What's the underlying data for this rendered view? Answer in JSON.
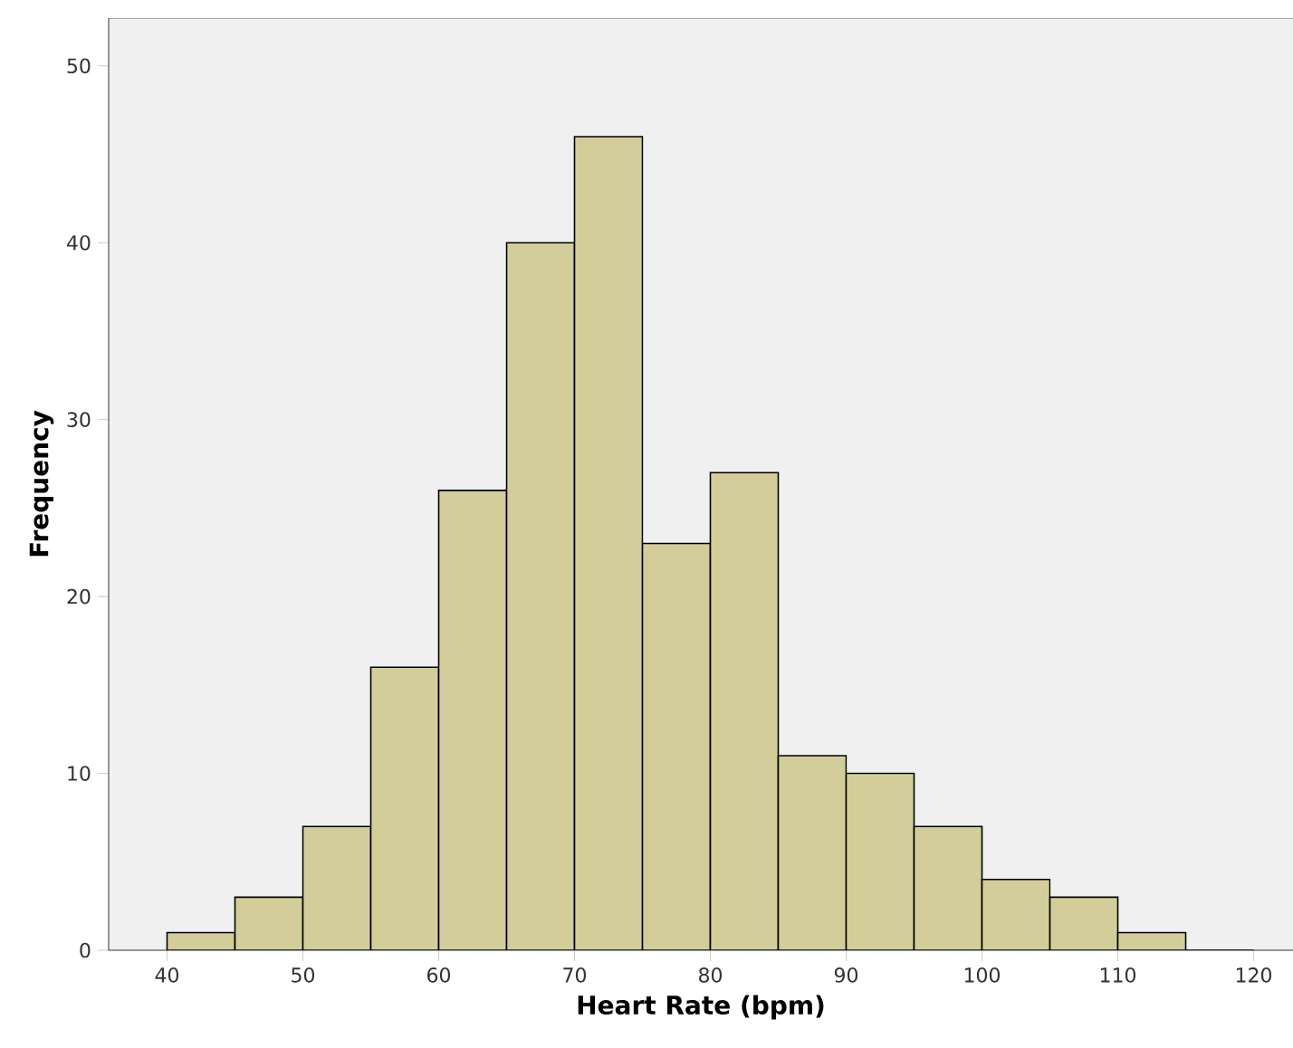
{
  "chart_data": {
    "type": "histogram",
    "xlabel": "Heart Rate (bpm)",
    "ylabel": "Frequency",
    "bins": [
      40,
      45,
      50,
      55,
      60,
      65,
      70,
      75,
      80,
      85,
      90,
      95,
      100,
      105,
      110,
      115,
      120
    ],
    "values": [
      1,
      3,
      7,
      16,
      26,
      40,
      46,
      23,
      27,
      11,
      10,
      7,
      4,
      3,
      1,
      0
    ],
    "color": "#d3ce99",
    "xlim": [
      35.7,
      122.9
    ],
    "ylim": [
      0,
      52.7
    ],
    "xticks": [
      40,
      50,
      60,
      70,
      80,
      90,
      100,
      110,
      120
    ],
    "yticks": [
      0,
      10,
      20,
      30,
      40,
      50
    ],
    "grid": false
  }
}
